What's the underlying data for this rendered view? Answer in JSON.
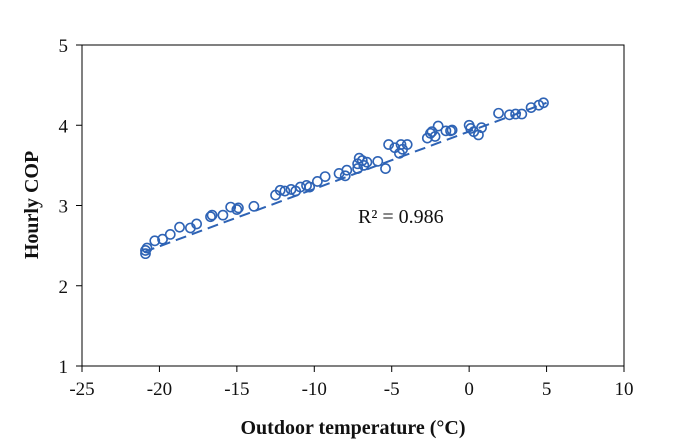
{
  "chart_data": {
    "type": "scatter",
    "xlabel": "Outdoor temperature (°C)",
    "ylabel": "Hourly COP",
    "xlim": [
      -25,
      10
    ],
    "ylim": [
      1,
      5
    ],
    "xticks": [
      -25,
      -20,
      -15,
      -10,
      -5,
      0,
      5,
      10
    ],
    "yticks": [
      1,
      2,
      3,
      4,
      5
    ],
    "x_tick_labels": [
      "-25",
      "-20",
      "-15",
      "-10",
      "-5",
      "0",
      "5",
      "10"
    ],
    "y_tick_labels": [
      "1",
      "2",
      "3",
      "4",
      "5"
    ],
    "grid": false,
    "legend": false,
    "annotation": "R² = 0.986",
    "trendline": {
      "style": "dashed",
      "from": [
        -21,
        2.42
      ],
      "to": [
        5,
        4.28
      ]
    },
    "colors": {
      "marker": "#2e63b5",
      "trendline": "#2e63b5",
      "axis": "#000000"
    },
    "series": [
      {
        "x": [
          -20.9,
          -20.9,
          -20.8,
          -20.3,
          -19.8,
          -19.3,
          -18.7,
          -18.0,
          -17.6,
          -16.7,
          -16.6,
          -15.9,
          -15.4,
          -15.0,
          -14.9,
          -13.9,
          -12.5,
          -12.2,
          -11.9,
          -11.5,
          -11.2,
          -10.9,
          -10.5,
          -10.3,
          -9.8,
          -9.3,
          -8.4,
          -8.0,
          -7.9,
          -7.2,
          -7.2,
          -7.1,
          -6.9,
          -6.8,
          -6.6,
          -5.9,
          -5.4,
          -5.2,
          -4.8,
          -4.5,
          -4.4,
          -4.3,
          -4.0,
          -2.7,
          -2.5,
          -2.4,
          -2.2,
          -2.0,
          -1.5,
          -1.2,
          -1.1,
          0.0,
          0.1,
          0.3,
          0.6,
          0.8,
          1.9,
          2.6,
          3.0,
          3.4,
          4.0,
          4.5,
          4.8
        ],
        "y": [
          2.4,
          2.44,
          2.47,
          2.56,
          2.58,
          2.64,
          2.73,
          2.72,
          2.77,
          2.86,
          2.88,
          2.88,
          2.98,
          2.95,
          2.97,
          2.99,
          3.13,
          3.19,
          3.18,
          3.2,
          3.18,
          3.23,
          3.25,
          3.23,
          3.3,
          3.36,
          3.4,
          3.37,
          3.44,
          3.46,
          3.52,
          3.59,
          3.56,
          3.5,
          3.54,
          3.55,
          3.46,
          3.76,
          3.72,
          3.65,
          3.76,
          3.7,
          3.76,
          3.84,
          3.9,
          3.92,
          3.86,
          3.99,
          3.93,
          3.93,
          3.94,
          4.0,
          3.96,
          3.92,
          3.88,
          3.97,
          4.15,
          4.13,
          4.14,
          4.14,
          4.22,
          4.25,
          4.28
        ]
      }
    ]
  }
}
